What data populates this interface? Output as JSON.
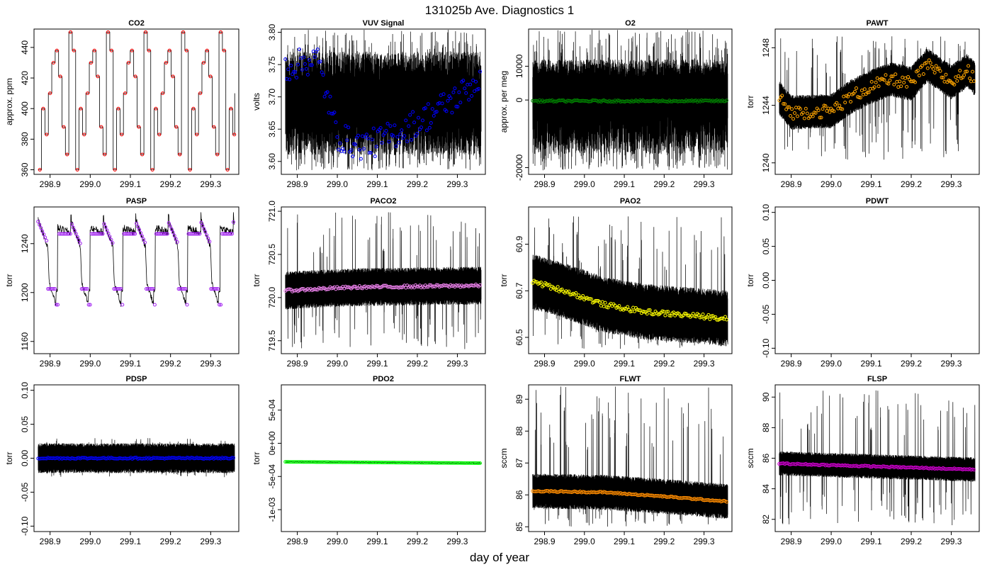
{
  "figure": {
    "title": "131025b   Ave. Diagnostics 1",
    "xlabel": "day of year"
  },
  "chart_data": [
    {
      "id": "co2",
      "title": "CO2",
      "ylabel": "approx. ppm",
      "type": "line",
      "xlim": [
        298.86,
        299.37
      ],
      "ylim": [
        357,
        452
      ],
      "xticks": [
        "298.9",
        "299.0",
        "299.1",
        "299.2",
        "299.3"
      ],
      "yticks": [
        "360",
        "380",
        "400",
        "420",
        "440"
      ],
      "pattern": "steps",
      "levels": [
        360,
        400,
        383,
        410,
        430,
        438,
        421,
        388,
        370,
        450,
        438
      ],
      "line_range": [
        360,
        450
      ],
      "line_style": "step",
      "point_color": "#ff0000"
    },
    {
      "id": "vuv",
      "title": "VUV Signal",
      "ylabel": "volts",
      "type": "line",
      "xlim": [
        298.86,
        299.37
      ],
      "ylim": [
        3.58,
        3.805
      ],
      "xticks": [
        "298.9",
        "299.0",
        "299.1",
        "299.2",
        "299.3"
      ],
      "yticks": [
        "3.60",
        "3.65",
        "3.70",
        "3.75",
        "3.80"
      ],
      "pattern": "noise",
      "center": 3.68,
      "line_range": [
        3.61,
        3.77
      ],
      "point_trend": [
        [
          298.87,
          3.745
        ],
        [
          298.95,
          3.76
        ],
        [
          299.0,
          3.64
        ],
        [
          299.05,
          3.625
        ],
        [
          299.1,
          3.63
        ],
        [
          299.2,
          3.66
        ],
        [
          299.3,
          3.7
        ],
        [
          299.37,
          3.735
        ]
      ],
      "point_spread": 0.045,
      "point_every": 0.0035,
      "point_color": "#0000ff"
    },
    {
      "id": "o2",
      "title": "O2",
      "ylabel": "approx. per meg",
      "type": "line",
      "xlim": [
        298.86,
        299.37
      ],
      "ylim": [
        -22000,
        21000
      ],
      "xticks": [
        "298.9",
        "299.0",
        "299.1",
        "299.2",
        "299.3"
      ],
      "yticks": [
        "-20000",
        "0",
        "10000"
      ],
      "pattern": "noise",
      "center": 0,
      "line_range": [
        -16000,
        12000
      ],
      "point_trend": [
        [
          298.87,
          -300
        ],
        [
          299.37,
          -300
        ]
      ],
      "point_spread": 500,
      "point_every": 0.0035,
      "point_color": "#008000"
    },
    {
      "id": "pawt",
      "title": "PAWT",
      "ylabel": "torr",
      "type": "line",
      "xlim": [
        298.86,
        299.37
      ],
      "ylim": [
        1239.2,
        1249.3
      ],
      "xticks": [
        "298.9",
        "299.0",
        "299.1",
        "299.2",
        "299.3"
      ],
      "yticks": [
        "1240",
        "1244",
        "1248"
      ],
      "pattern": "band",
      "point_trend": [
        [
          298.87,
          1244.5
        ],
        [
          298.9,
          1243.5
        ],
        [
          299.0,
          1243.6
        ],
        [
          299.05,
          1244.6
        ],
        [
          299.1,
          1245.3
        ],
        [
          299.15,
          1245.8
        ],
        [
          299.2,
          1245.5
        ],
        [
          299.24,
          1246.8
        ],
        [
          299.3,
          1245.6
        ],
        [
          299.34,
          1246.4
        ],
        [
          299.37,
          1245.5
        ]
      ],
      "band_half": 1.2,
      "spike_range": [
        1240.2,
        1248.8
      ],
      "point_spread": 0.9,
      "point_every": 0.0035,
      "point_color": "#ffa500"
    },
    {
      "id": "pasp",
      "title": "PASP",
      "ylabel": "torr",
      "type": "line",
      "xlim": [
        298.86,
        299.37
      ],
      "ylim": [
        1150,
        1270
      ],
      "xticks": [
        "298.9",
        "299.0",
        "299.1",
        "299.2",
        "299.3"
      ],
      "yticks": [
        "1160",
        "1200",
        "1240"
      ],
      "pattern": "sawtooth",
      "period": 0.081,
      "high": 1258,
      "mid": 1238,
      "low": 1190,
      "line_range": [
        1160,
        1268
      ],
      "point_color": "#a020f0"
    },
    {
      "id": "paco2",
      "title": "PACO2",
      "ylabel": "torr",
      "type": "line",
      "xlim": [
        298.86,
        299.37
      ],
      "ylim": [
        719.35,
        721.05
      ],
      "xticks": [
        "298.9",
        "299.0",
        "299.1",
        "299.2",
        "299.3"
      ],
      "yticks": [
        "719.5",
        "720.0",
        "720.5",
        "721.0"
      ],
      "pattern": "band",
      "point_trend": [
        [
          298.87,
          720.08
        ],
        [
          298.95,
          720.1
        ],
        [
          299.05,
          720.12
        ],
        [
          299.37,
          720.14
        ]
      ],
      "band_half": 0.22,
      "spike_range": [
        719.4,
        721.0
      ],
      "point_spread": 0.03,
      "point_every": 0.0035,
      "point_color": "#ee82ee"
    },
    {
      "id": "pao2",
      "title": "PAO2",
      "ylabel": "torr",
      "type": "line",
      "xlim": [
        298.86,
        299.37
      ],
      "ylim": [
        60.43,
        61.06
      ],
      "xticks": [
        "298.9",
        "299.0",
        "299.1",
        "299.2",
        "299.3"
      ],
      "yticks": [
        "60.5",
        "60.7",
        "60.9"
      ],
      "pattern": "band",
      "point_trend": [
        [
          298.87,
          60.74
        ],
        [
          298.95,
          60.7
        ],
        [
          299.05,
          60.64
        ],
        [
          299.15,
          60.61
        ],
        [
          299.37,
          60.58
        ]
      ],
      "band_half": 0.12,
      "spike_range": [
        60.45,
        61.02
      ],
      "point_spread": 0.02,
      "point_every": 0.0035,
      "point_color": "#ffff00"
    },
    {
      "id": "pdwt",
      "title": "PDWT",
      "ylabel": "torr",
      "type": "line",
      "xlim": [
        298.86,
        299.37
      ],
      "ylim": [
        -0.108,
        0.108
      ],
      "xticks": [
        "298.9",
        "299.0",
        "299.1",
        "299.2",
        "299.3"
      ],
      "yticks": [
        "-0.10",
        "-0.05",
        "0.00",
        "0.05",
        "0.10"
      ],
      "pattern": "empty"
    },
    {
      "id": "pdsp",
      "title": "PDSP",
      "ylabel": "torr",
      "type": "line",
      "xlim": [
        298.86,
        299.37
      ],
      "ylim": [
        -0.108,
        0.108
      ],
      "xticks": [
        "298.9",
        "299.0",
        "299.1",
        "299.2",
        "299.3"
      ],
      "yticks": [
        "-0.10",
        "-0.05",
        "0.00",
        "0.05",
        "0.10"
      ],
      "pattern": "band",
      "point_trend": [
        [
          298.87,
          0.0
        ],
        [
          299.37,
          0.0
        ]
      ],
      "band_half": 0.022,
      "spike_range": [
        -0.028,
        0.03
      ],
      "point_spread": 0.002,
      "point_every": 0.0035,
      "point_color": "#0000ff"
    },
    {
      "id": "pdo2",
      "title": "PDO2",
      "ylabel": "torr",
      "type": "line",
      "xlim": [
        298.86,
        299.37
      ],
      "ylim": [
        -0.00133,
        0.00088
      ],
      "xticks": [
        "298.9",
        "299.0",
        "299.1",
        "299.2",
        "299.3"
      ],
      "yticks": [
        "-1e-03",
        "-5e-04",
        "0e+00",
        "5e-04"
      ],
      "pattern": "flat",
      "point_trend": [
        [
          298.87,
          -0.00028
        ],
        [
          299.37,
          -0.0003
        ]
      ],
      "point_spread": 1e-05,
      "point_every": 0.0035,
      "point_color": "#00ff00"
    },
    {
      "id": "flwt",
      "title": "FLWT",
      "ylabel": "sccm",
      "type": "line",
      "xlim": [
        298.86,
        299.37
      ],
      "ylim": [
        84.85,
        89.45
      ],
      "xticks": [
        "298.9",
        "299.0",
        "299.1",
        "299.2",
        "299.3"
      ],
      "yticks": [
        "85",
        "86",
        "87",
        "88",
        "89"
      ],
      "pattern": "band",
      "point_trend": [
        [
          298.87,
          86.12
        ],
        [
          299.05,
          86.08
        ],
        [
          299.2,
          85.95
        ],
        [
          299.37,
          85.78
        ]
      ],
      "band_half": 0.55,
      "spike_range": [
        85.0,
        89.4
      ],
      "point_spread": 0.04,
      "point_every": 0.0035,
      "point_color": "#ff8c00"
    },
    {
      "id": "flsp",
      "title": "FLSP",
      "ylabel": "sccm",
      "type": "line",
      "xlim": [
        298.86,
        299.37
      ],
      "ylim": [
        81.2,
        90.8
      ],
      "xticks": [
        "298.9",
        "299.0",
        "299.1",
        "299.2",
        "299.3"
      ],
      "yticks": [
        "82",
        "84",
        "86",
        "88",
        "90"
      ],
      "pattern": "band",
      "point_trend": [
        [
          298.87,
          85.65
        ],
        [
          299.37,
          85.25
        ]
      ],
      "band_half": 0.8,
      "spike_range": [
        81.6,
        90.5
      ],
      "point_spread": 0.08,
      "point_every": 0.0035,
      "point_color": "#cd00cd"
    }
  ]
}
